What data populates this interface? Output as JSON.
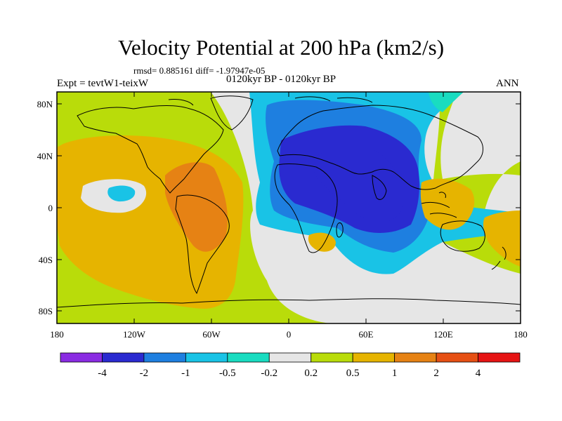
{
  "title": "Velocity Potential at 200 hPa (km2/s)",
  "stats": "rmsd= 0.885161  diff= -1.97947e-05",
  "experiment": "Expt = tevtW1-teixW",
  "period": "0120kyr BP - 0120kyr BP",
  "season": "ANN",
  "lat_labels": [
    "80N",
    "40N",
    "0",
    "40S",
    "80S"
  ],
  "lon_labels": [
    "180",
    "120W",
    "60W",
    "0",
    "60E",
    "120E",
    "180"
  ],
  "colorbar": {
    "labels": [
      "-4",
      "-2",
      "-1",
      "-0.5",
      "-0.2",
      "0.2",
      "0.5",
      "1",
      "2",
      "4"
    ],
    "colors": [
      "#8a2be2",
      "#2a2ad0",
      "#1e7fe0",
      "#19c3e6",
      "#19dcc0",
      "#e6e6e6",
      "#b9dc0a",
      "#e6b400",
      "#e68214",
      "#e65014",
      "#e61414"
    ]
  },
  "map_colors": {
    "ocean_bg": "#b9dc0a",
    "neutral": "#e6e6e6",
    "pos_05_1": "#e6b400",
    "pos_1_2": "#e68214",
    "neg_02_05": "#19dcc0",
    "neg_05_1": "#19c3e6",
    "neg_1_2": "#1e7fe0",
    "neg_2_4": "#2a2ad0"
  }
}
